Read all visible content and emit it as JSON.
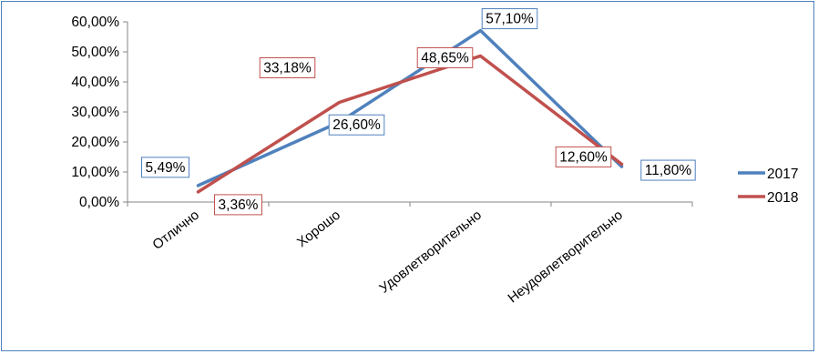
{
  "chart_data": {
    "type": "line",
    "title": "",
    "xlabel": "",
    "ylabel": "",
    "categories": [
      "Отлично",
      "Хорошо",
      "Удовлетворительно",
      "Неудовлетворительно"
    ],
    "ylim": [
      0,
      60
    ],
    "yticks": [
      "0,00%",
      "10,00%",
      "20,00%",
      "30,00%",
      "40,00%",
      "50,00%",
      "60,00%"
    ],
    "grid": false,
    "legend_position": "right",
    "series": [
      {
        "name": "2017",
        "color": "#4f81bd",
        "values": [
          5.49,
          26.6,
          57.1,
          11.8
        ],
        "labels": [
          "5,49%",
          "26,60%",
          "57,10%",
          "11,80%"
        ]
      },
      {
        "name": "2018",
        "color": "#c0504d",
        "values": [
          3.36,
          33.18,
          48.65,
          12.6
        ],
        "labels": [
          "3,36%",
          "33,18%",
          "48,65%",
          "12,60%"
        ]
      }
    ]
  }
}
